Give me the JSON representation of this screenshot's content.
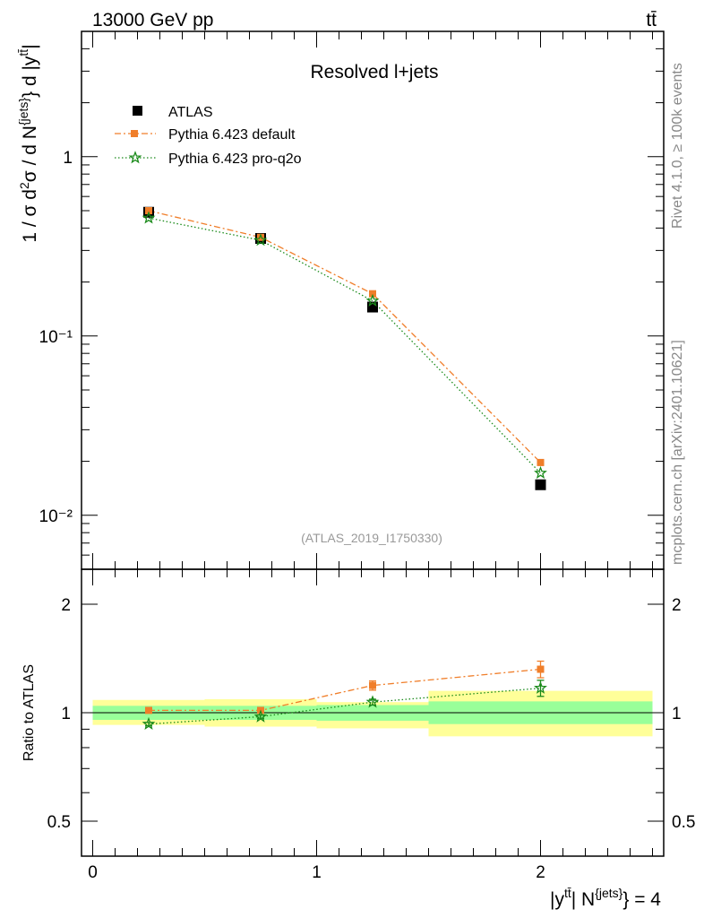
{
  "header": {
    "energy_label": "13000 GeV pp",
    "process_label": "tt̄"
  },
  "side_labels": {
    "rivet": "Rivet 4.1.0, ≥ 100k events",
    "mcplots": "mcplots.cern.ch [arXiv:2401.10621]"
  },
  "chart_data": [
    {
      "type": "line",
      "panel": "main",
      "title": "Resolved l+jets",
      "watermark": "(ATLAS_2019_I1750330)",
      "ylabel": "1 / σ d²σ / d N^{jets} d |y^{tt̄}|",
      "yscale": "log",
      "ylim": [
        0.005,
        5
      ],
      "xlim": [
        -0.05,
        2.55
      ],
      "y_tick_labels": [
        "1",
        "10⁻¹",
        "10⁻²"
      ],
      "y_tick_values": [
        1,
        0.1,
        0.01
      ],
      "legend": [
        "ATLAS",
        "Pythia 6.423 default",
        "Pythia 6.423 pro-q2o"
      ],
      "legend_position": "top-left",
      "x": [
        0.25,
        0.75,
        1.25,
        2.0
      ],
      "series": [
        {
          "name": "ATLAS",
          "marker": "square",
          "color": "#000000",
          "values": [
            0.49,
            0.35,
            0.145,
            0.0148
          ]
        },
        {
          "name": "Pythia 6.423 default",
          "marker": "square",
          "line": "dash-dot",
          "color": "#f07e2a",
          "values": [
            0.5,
            0.355,
            0.172,
            0.0197
          ]
        },
        {
          "name": "Pythia 6.423 pro-q2o",
          "marker": "star",
          "line": "dotted",
          "color": "#1a8a1a",
          "values": [
            0.455,
            0.342,
            0.157,
            0.0172
          ]
        }
      ]
    },
    {
      "type": "line",
      "panel": "ratio",
      "ylabel": "Ratio to ATLAS",
      "xlabel": "|y^{tt̄}| N^{jets} = 4",
      "yscale": "log",
      "ylim": [
        0.4,
        2.5
      ],
      "xlim": [
        -0.05,
        2.55
      ],
      "y_tick_labels": [
        "2",
        "1",
        "0.5"
      ],
      "y_tick_values": [
        2,
        1,
        0.5
      ],
      "x_tick_labels": [
        "0",
        "1",
        "2"
      ],
      "x_tick_values": [
        0,
        1,
        2
      ],
      "bands": [
        {
          "x0": 0.0,
          "x1": 0.5,
          "stat_lo": 0.955,
          "stat_hi": 1.045,
          "tot_lo": 0.925,
          "tot_hi": 1.085
        },
        {
          "x0": 0.5,
          "x1": 1.0,
          "stat_lo": 0.955,
          "stat_hi": 1.045,
          "tot_lo": 0.915,
          "tot_hi": 1.09
        },
        {
          "x0": 1.0,
          "x1": 1.5,
          "stat_lo": 0.95,
          "stat_hi": 1.05,
          "tot_lo": 0.905,
          "tot_hi": 1.07
        },
        {
          "x0": 1.5,
          "x1": 2.5,
          "stat_lo": 0.93,
          "stat_hi": 1.075,
          "tot_lo": 0.86,
          "tot_hi": 1.15
        }
      ],
      "band_colors": {
        "stat": "#99ff99",
        "total": "#ffff99"
      },
      "x": [
        0.25,
        0.75,
        1.25,
        2.0
      ],
      "series": [
        {
          "name": "Pythia 6.423 default",
          "color": "#f07e2a",
          "marker": "square",
          "line": "dash-dot",
          "values": [
            1.015,
            1.015,
            1.19,
            1.32
          ],
          "err": [
            0.01,
            0.01,
            0.035,
            0.07
          ]
        },
        {
          "name": "Pythia 6.423 pro-q2o",
          "color": "#1a8a1a",
          "marker": "star",
          "line": "dotted",
          "values": [
            0.93,
            0.975,
            1.07,
            1.17
          ],
          "err": [
            0.01,
            0.01,
            0.02,
            0.06
          ]
        }
      ]
    }
  ]
}
